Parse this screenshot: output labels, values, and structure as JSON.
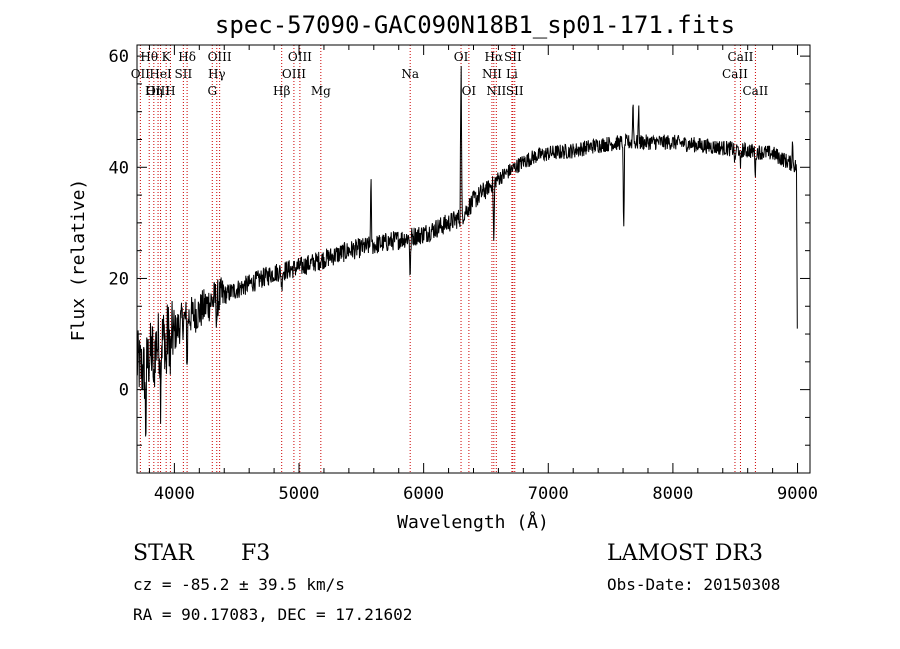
{
  "chart_data": {
    "type": "line",
    "title": "spec-57090-GAC090N18B1_sp01-171.fits",
    "xlabel": "Wavelength (Å)",
    "ylabel": "Flux (relative)",
    "xlim": [
      3700,
      9100
    ],
    "ylim": [
      -15,
      62
    ],
    "xticks": [
      4000,
      5000,
      6000,
      7000,
      8000,
      9000
    ],
    "xtick_labels": [
      "4000",
      "5000",
      "6000",
      "7000",
      "8000",
      "9000"
    ],
    "yticks": [
      0,
      20,
      40,
      60
    ],
    "ytick_labels": [
      "0",
      "20",
      "40",
      "60"
    ],
    "series": [
      {
        "name": "spectrum",
        "anchors": [
          [
            3700,
            5
          ],
          [
            3760,
            3
          ],
          [
            3800,
            6
          ],
          [
            3850,
            8
          ],
          [
            3900,
            9
          ],
          [
            3950,
            10
          ],
          [
            4000,
            10
          ],
          [
            4050,
            12
          ],
          [
            4100,
            13
          ],
          [
            4200,
            14
          ],
          [
            4300,
            16
          ],
          [
            4400,
            17
          ],
          [
            4500,
            18
          ],
          [
            4600,
            19
          ],
          [
            4800,
            21
          ],
          [
            5000,
            22
          ],
          [
            5200,
            23.5
          ],
          [
            5400,
            25
          ],
          [
            5600,
            26
          ],
          [
            5800,
            27
          ],
          [
            6000,
            28
          ],
          [
            6200,
            30
          ],
          [
            6300,
            31
          ],
          [
            6400,
            34
          ],
          [
            6500,
            36
          ],
          [
            6600,
            38
          ],
          [
            6700,
            39.5
          ],
          [
            6800,
            41
          ],
          [
            6900,
            42
          ],
          [
            7000,
            42.5
          ],
          [
            7200,
            43
          ],
          [
            7400,
            44
          ],
          [
            7600,
            44.5
          ],
          [
            7800,
            44.5
          ],
          [
            8000,
            44.5
          ],
          [
            8200,
            44
          ],
          [
            8400,
            43.5
          ],
          [
            8600,
            43
          ],
          [
            8800,
            42.5
          ],
          [
            9000,
            40
          ]
        ],
        "features": [
          {
            "w": 3770,
            "depth": -12
          },
          {
            "w": 3835,
            "depth": -10
          },
          {
            "w": 3889,
            "depth": -9
          },
          {
            "w": 3934,
            "depth": -7
          },
          {
            "w": 3968,
            "depth": -7
          },
          {
            "w": 4102,
            "depth": -9
          },
          {
            "w": 4340,
            "depth": -4
          },
          {
            "w": 4861,
            "depth": -3
          },
          {
            "w": 5577,
            "depth": 12
          },
          {
            "w": 5892,
            "depth": -8
          },
          {
            "w": 6300,
            "depth": 30
          },
          {
            "w": 6563,
            "depth": -12
          },
          {
            "w": 7605,
            "depth": -18
          },
          {
            "w": 7680,
            "depth": 8
          },
          {
            "w": 7725,
            "depth": 6
          },
          {
            "w": 8498,
            "depth": -3
          },
          {
            "w": 8542,
            "depth": -4
          },
          {
            "w": 8662,
            "depth": -4
          },
          {
            "w": 8960,
            "depth": 4
          },
          {
            "w": 9000,
            "depth": -40
          }
        ]
      }
    ],
    "line_markers": [
      {
        "label": "OII",
        "w": 3727,
        "row": 1
      },
      {
        "label": "Hθ",
        "w": 3798,
        "row": 0
      },
      {
        "label": "OIII",
        "w": 3869,
        "row": 2
      },
      {
        "label": "HeI",
        "w": 3889,
        "row": 1
      },
      {
        "label": "Hη",
        "w": 3835,
        "row": 2
      },
      {
        "label": "K",
        "w": 3934,
        "row": 0
      },
      {
        "label": "H",
        "w": 3968,
        "row": 2
      },
      {
        "label": "SII",
        "w": 4072,
        "row": 1
      },
      {
        "label": "Hδ",
        "w": 4102,
        "row": 0
      },
      {
        "label": "G",
        "w": 4304,
        "row": 2
      },
      {
        "label": "OIII",
        "w": 4363,
        "row": 0
      },
      {
        "label": "Hγ",
        "w": 4340,
        "row": 1
      },
      {
        "label": "Hβ",
        "w": 4861,
        "row": 2
      },
      {
        "label": "OIII",
        "w": 4959,
        "row": 1
      },
      {
        "label": "OIII",
        "w": 5007,
        "row": 0
      },
      {
        "label": "Mg",
        "w": 5175,
        "row": 2
      },
      {
        "label": "Na",
        "w": 5892,
        "row": 1
      },
      {
        "label": "OI",
        "w": 6300,
        "row": 0
      },
      {
        "label": "OI",
        "w": 6363,
        "row": 2
      },
      {
        "label": "NII",
        "w": 6548,
        "row": 1
      },
      {
        "label": "Hα",
        "w": 6563,
        "row": 0
      },
      {
        "label": "NII",
        "w": 6583,
        "row": 2
      },
      {
        "label": "Li",
        "w": 6708,
        "row": 1
      },
      {
        "label": "SII",
        "w": 6716,
        "row": 0
      },
      {
        "label": "SII",
        "w": 6731,
        "row": 2
      },
      {
        "label": "CaII",
        "w": 8498,
        "row": 1
      },
      {
        "label": "CaII",
        "w": 8542,
        "row": 0
      },
      {
        "label": "CaII",
        "w": 8662,
        "row": 2
      }
    ]
  },
  "info": {
    "object_type": "STAR",
    "subclass": "F3",
    "survey": "LAMOST DR3",
    "redshift": "cz = -85.2 ± 39.5 km/s",
    "obs_date": "Obs-Date: 20150308",
    "coords": "RA =  90.17083, DEC =  17.21602"
  },
  "colors": {
    "spectrum": "#000000",
    "marker": "#cc0000",
    "frame": "#000000"
  }
}
